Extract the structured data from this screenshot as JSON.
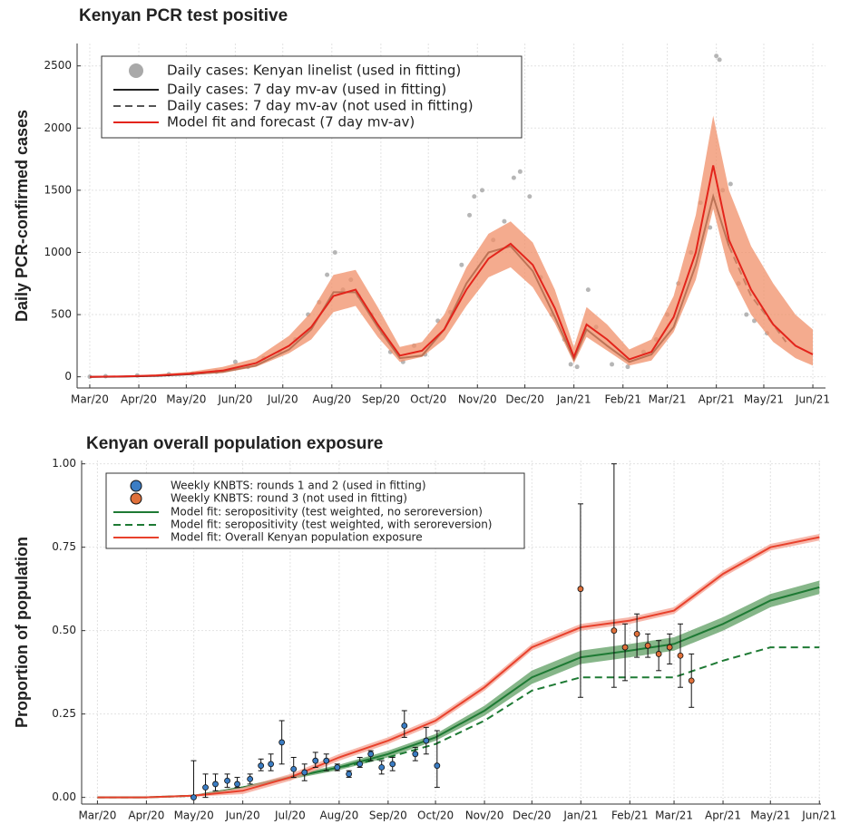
{
  "chart_data": [
    {
      "type": "line",
      "title": "Kenyan PCR test positive",
      "ylabel": "Daily PCR-confirmed cases",
      "xlim": [
        -8,
        465
      ],
      "ylim": [
        -90,
        2680
      ],
      "grid": true,
      "legend": "top-left",
      "xticks": [
        {
          "value": 0,
          "label": "Mar/20"
        },
        {
          "value": 31,
          "label": "Apr/20"
        },
        {
          "value": 61,
          "label": "May/20"
        },
        {
          "value": 92,
          "label": "Jun/20"
        },
        {
          "value": 122,
          "label": "Jul/20"
        },
        {
          "value": 153,
          "label": "Aug/20"
        },
        {
          "value": 184,
          "label": "Sep/20"
        },
        {
          "value": 214,
          "label": "Oct/20"
        },
        {
          "value": 245,
          "label": "Nov/20"
        },
        {
          "value": 275,
          "label": "Dec/20"
        },
        {
          "value": 306,
          "label": "Jan/21"
        },
        {
          "value": 337,
          "label": "Feb/21"
        },
        {
          "value": 365,
          "label": "Mar/21"
        },
        {
          "value": 396,
          "label": "Apr/21"
        },
        {
          "value": 426,
          "label": "May/21"
        },
        {
          "value": 457,
          "label": "Jun/21"
        }
      ],
      "yticks": [
        0,
        500,
        1000,
        1500,
        2000,
        2500
      ],
      "series": [
        {
          "name": "Daily cases: Kenyan linelist (used in fitting)",
          "type": "scatter",
          "color": "#a9a9a9",
          "x": [
            0,
            10,
            30,
            50,
            65,
            80,
            92,
            100,
            110,
            120,
            130,
            138,
            145,
            150,
            155,
            160,
            165,
            170,
            178,
            185,
            190,
            198,
            205,
            212,
            220,
            228,
            235,
            240,
            243,
            248,
            255,
            262,
            268,
            272,
            278,
            285,
            292,
            300,
            304,
            308,
            315,
            320,
            330,
            340,
            350,
            358,
            365,
            372,
            380,
            386,
            392,
            396,
            398,
            400,
            405,
            410,
            415,
            420,
            428
          ],
          "values": [
            0,
            5,
            10,
            20,
            25,
            40,
            120,
            80,
            150,
            200,
            300,
            500,
            600,
            820,
            1000,
            700,
            780,
            650,
            500,
            350,
            200,
            120,
            250,
            180,
            450,
            520,
            900,
            1300,
            1450,
            1500,
            1100,
            1250,
            1600,
            1650,
            1450,
            800,
            500,
            300,
            100,
            80,
            700,
            400,
            100,
            80,
            200,
            300,
            500,
            750,
            1000,
            1400,
            1200,
            2580,
            2550,
            1500,
            1550,
            750,
            500,
            450,
            350
          ]
        },
        {
          "name": "Daily cases: 7 day mv-av (used in fitting)",
          "type": "line",
          "color": "#222222",
          "x": [
            0,
            21,
            42,
            63,
            84,
            105,
            126,
            140,
            154,
            168,
            182,
            196,
            210,
            224,
            238,
            252,
            266,
            280,
            294,
            306,
            314,
            327,
            341,
            355,
            369,
            383,
            394,
            404
          ],
          "values": [
            0,
            2,
            8,
            20,
            40,
            90,
            220,
            380,
            680,
            680,
            400,
            150,
            170,
            380,
            750,
            1000,
            1050,
            850,
            480,
            140,
            380,
            250,
            120,
            180,
            400,
            900,
            1450,
            1050
          ]
        },
        {
          "name": "Daily cases: 7 day mv-av (not used in fitting)",
          "type": "line",
          "dash": true,
          "color": "#555555",
          "x": [
            404,
            418,
            432,
            440
          ],
          "values": [
            1050,
            650,
            420,
            280
          ]
        },
        {
          "name": "Model fit and forecast (7 day mv-av)",
          "type": "line",
          "color": "#e3241b",
          "band_color": "#f08f68",
          "x": [
            0,
            21,
            42,
            63,
            84,
            105,
            126,
            140,
            154,
            168,
            182,
            196,
            210,
            224,
            238,
            252,
            266,
            280,
            294,
            306,
            314,
            327,
            341,
            355,
            369,
            383,
            394,
            404,
            418,
            432,
            446,
            457
          ],
          "values": [
            0,
            3,
            10,
            25,
            50,
            110,
            250,
            400,
            650,
            700,
            420,
            170,
            210,
            380,
            700,
            950,
            1070,
            900,
            550,
            160,
            420,
            300,
            140,
            200,
            480,
            1000,
            1700,
            1100,
            700,
            420,
            250,
            180
          ],
          "band_upper": [
            5,
            8,
            20,
            40,
            80,
            150,
            330,
            520,
            820,
            860,
            560,
            240,
            280,
            500,
            880,
            1150,
            1250,
            1080,
            700,
            240,
            560,
            420,
            220,
            300,
            650,
            1300,
            2100,
            1500,
            1050,
            750,
            500,
            380
          ],
          "band_lower": [
            0,
            0,
            5,
            15,
            30,
            80,
            190,
            300,
            520,
            570,
            320,
            120,
            160,
            300,
            570,
            800,
            880,
            720,
            430,
            110,
            320,
            210,
            90,
            130,
            360,
            780,
            1350,
            850,
            500,
            280,
            150,
            90
          ]
        }
      ]
    },
    {
      "type": "line",
      "title": "Kenyan overall population exposure",
      "ylabel": "Proportion of population",
      "xlim": [
        -10,
        458
      ],
      "ylim": [
        -0.02,
        1.01
      ],
      "grid": true,
      "legend": "top-left",
      "xticks": [
        {
          "value": 0,
          "label": "Mar/20"
        },
        {
          "value": 31,
          "label": "Apr/20"
        },
        {
          "value": 61,
          "label": "May/20"
        },
        {
          "value": 92,
          "label": "Jun/20"
        },
        {
          "value": 122,
          "label": "Jul/20"
        },
        {
          "value": 153,
          "label": "Aug/20"
        },
        {
          "value": 184,
          "label": "Sep/20"
        },
        {
          "value": 214,
          "label": "Oct/20"
        },
        {
          "value": 245,
          "label": "Nov/20"
        },
        {
          "value": 275,
          "label": "Dec/20"
        },
        {
          "value": 306,
          "label": "Jan/21"
        },
        {
          "value": 337,
          "label": "Feb/21"
        },
        {
          "value": 365,
          "label": "Mar/21"
        },
        {
          "value": 396,
          "label": "Apr/21"
        },
        {
          "value": 426,
          "label": "May/21"
        },
        {
          "value": 457,
          "label": "Jun/21"
        }
      ],
      "yticks": [
        {
          "value": 0,
          "label": "0.00"
        },
        {
          "value": 0.25,
          "label": "0.25"
        },
        {
          "value": 0.5,
          "label": "0.50"
        },
        {
          "value": 0.75,
          "label": "0.75"
        },
        {
          "value": 1,
          "label": "1.00"
        }
      ],
      "series": [
        {
          "name": "Weekly KNBTS: rounds 1 and 2 (used in fitting)",
          "type": "scatter",
          "color": "#3b7dc4",
          "x": [
            60.9,
            68.4,
            74.7,
            82.2,
            88.5,
            96.6,
            103.5,
            109.8,
            116.7,
            124.2,
            131.1,
            138,
            144.9,
            151.8,
            159.2,
            166.1,
            173,
            179.9,
            186.8,
            194.3,
            201.2,
            208.1,
            215
          ],
          "values": [
            0.0,
            0.03,
            0.04,
            0.05,
            0.04,
            0.055,
            0.095,
            0.1,
            0.165,
            0.085,
            0.075,
            0.11,
            0.11,
            0.09,
            0.07,
            0.1,
            0.13,
            0.09,
            0.1,
            0.215,
            0.13,
            0.17,
            0.095
          ],
          "lower": [
            0.0,
            0.0,
            0.02,
            0.03,
            0.03,
            0.04,
            0.08,
            0.08,
            0.1,
            0.06,
            0.05,
            0.09,
            0.08,
            0.08,
            0.06,
            0.09,
            0.11,
            0.07,
            0.08,
            0.18,
            0.11,
            0.13,
            0.03
          ],
          "upper": [
            0.11,
            0.07,
            0.07,
            0.07,
            0.06,
            0.07,
            0.115,
            0.13,
            0.23,
            0.12,
            0.1,
            0.135,
            0.13,
            0.1,
            0.08,
            0.12,
            0.14,
            0.11,
            0.12,
            0.26,
            0.15,
            0.21,
            0.2
          ]
        },
        {
          "name": "Weekly KNBTS: round 3 (not used in fitting)",
          "type": "scatter",
          "color": "#e0703a",
          "x": [
            305.8,
            327,
            334,
            341.5,
            348.4,
            355.3,
            362.2,
            369,
            376
          ],
          "values": [
            0.625,
            0.5,
            0.45,
            0.49,
            0.455,
            0.43,
            0.45,
            0.425,
            0.35
          ],
          "lower": [
            0.3,
            0.33,
            0.35,
            0.42,
            0.42,
            0.38,
            0.4,
            0.33,
            0.27
          ],
          "upper": [
            0.88,
            1.0,
            0.52,
            0.55,
            0.49,
            0.47,
            0.49,
            0.52,
            0.43
          ]
        },
        {
          "name": "Model fit: seropositivity (test weighted, no seroreversion)",
          "type": "line",
          "color": "#1e7a34",
          "band_color": "#5e9e62",
          "x": [
            0,
            30,
            61,
            92,
            122,
            153,
            184,
            214,
            245,
            275,
            306,
            337,
            365,
            396,
            426,
            457
          ],
          "values": [
            0,
            0,
            0.005,
            0.03,
            0.06,
            0.09,
            0.13,
            0.18,
            0.26,
            0.36,
            0.42,
            0.44,
            0.46,
            0.52,
            0.59,
            0.63
          ],
          "band_upper": [
            0,
            0,
            0.006,
            0.033,
            0.066,
            0.098,
            0.14,
            0.19,
            0.275,
            0.38,
            0.44,
            0.46,
            0.48,
            0.54,
            0.61,
            0.65
          ],
          "band_lower": [
            0,
            0,
            0.004,
            0.027,
            0.054,
            0.082,
            0.12,
            0.17,
            0.245,
            0.34,
            0.4,
            0.42,
            0.44,
            0.5,
            0.57,
            0.61
          ]
        },
        {
          "name": "Model fit: seropositivity (test weighted, with seroreversion)",
          "type": "line",
          "dash": true,
          "color": "#1e7a34",
          "x": [
            0,
            30,
            61,
            92,
            122,
            153,
            184,
            214,
            245,
            275,
            306,
            337,
            365,
            396,
            426,
            457
          ],
          "values": [
            0,
            0,
            0.005,
            0.03,
            0.06,
            0.09,
            0.12,
            0.16,
            0.23,
            0.32,
            0.36,
            0.36,
            0.36,
            0.41,
            0.45,
            0.45
          ]
        },
        {
          "name": "Model fit: Overall Kenyan population exposure",
          "type": "line",
          "color": "#e8412c",
          "band_color": "#f4a090",
          "x": [
            0,
            30,
            61,
            92,
            122,
            153,
            184,
            214,
            245,
            275,
            306,
            337,
            365,
            396,
            426,
            457
          ],
          "values": [
            0,
            0,
            0.005,
            0.02,
            0.06,
            0.12,
            0.17,
            0.23,
            0.33,
            0.45,
            0.51,
            0.53,
            0.56,
            0.67,
            0.75,
            0.78
          ],
          "band_upper": [
            0,
            0,
            0.008,
            0.03,
            0.07,
            0.13,
            0.18,
            0.24,
            0.34,
            0.46,
            0.52,
            0.54,
            0.57,
            0.68,
            0.76,
            0.79
          ],
          "band_lower": [
            0,
            0,
            0.002,
            0.01,
            0.05,
            0.11,
            0.16,
            0.22,
            0.32,
            0.44,
            0.5,
            0.52,
            0.55,
            0.66,
            0.74,
            0.77
          ]
        }
      ]
    }
  ]
}
